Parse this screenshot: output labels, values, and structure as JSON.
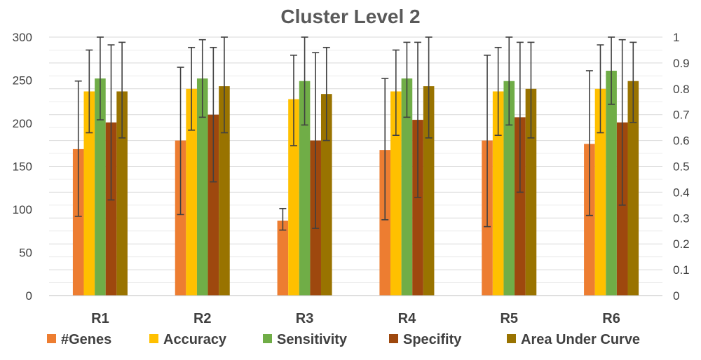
{
  "chart_data": {
    "type": "bar",
    "title": "Cluster Level 2",
    "categories": [
      "R1",
      "R2",
      "R3",
      "R4",
      "R5",
      "R6"
    ],
    "left_axis": {
      "ylim": [
        0,
        300
      ],
      "ticks": [
        0,
        50,
        100,
        150,
        200,
        250,
        300
      ]
    },
    "right_axis": {
      "ylim": [
        0,
        1
      ],
      "ticks": [
        "0",
        "0.1",
        "0.2",
        "0.3",
        "0.4",
        "0.5",
        "0.6",
        "0.7",
        "0.8",
        "0.9",
        "1"
      ]
    },
    "grid": true,
    "legend_position": "bottom",
    "series": [
      {
        "name": "#Genes",
        "axis": "left",
        "color": "#ed7d31",
        "values": [
          170,
          180,
          87,
          169,
          180,
          176
        ],
        "error_low": [
          92,
          94,
          76,
          88,
          80,
          93
        ],
        "error_high": [
          249,
          265,
          101,
          252,
          279,
          261
        ]
      },
      {
        "name": "Accuracy",
        "axis": "right",
        "color": "#ffc000",
        "values": [
          0.79,
          0.8,
          0.76,
          0.79,
          0.79,
          0.8
        ],
        "error_low": [
          0.63,
          0.64,
          0.58,
          0.62,
          0.62,
          0.63
        ],
        "error_high": [
          0.95,
          0.96,
          0.93,
          0.95,
          0.96,
          0.97
        ]
      },
      {
        "name": "Sensitivity",
        "axis": "right",
        "color": "#70ad47",
        "values": [
          0.84,
          0.84,
          0.83,
          0.84,
          0.83,
          0.87
        ],
        "error_low": [
          0.68,
          0.69,
          0.66,
          0.69,
          0.66,
          0.74
        ],
        "error_high": [
          1.0,
          0.99,
          1.0,
          0.98,
          1.0,
          1.0
        ]
      },
      {
        "name": "Specifity",
        "axis": "right",
        "color": "#9e480e",
        "values": [
          0.67,
          0.7,
          0.6,
          0.68,
          0.69,
          0.67
        ],
        "error_low": [
          0.37,
          0.44,
          0.26,
          0.38,
          0.4,
          0.35
        ],
        "error_high": [
          0.97,
          0.96,
          0.94,
          0.98,
          0.98,
          0.99
        ]
      },
      {
        "name": "Area Under Curve",
        "axis": "right",
        "color": "#997300",
        "values": [
          0.79,
          0.81,
          0.78,
          0.81,
          0.8,
          0.83
        ],
        "error_low": [
          0.61,
          0.63,
          0.6,
          0.61,
          0.61,
          0.67
        ],
        "error_high": [
          0.98,
          1.0,
          0.96,
          1.0,
          0.98,
          0.98
        ]
      }
    ]
  }
}
